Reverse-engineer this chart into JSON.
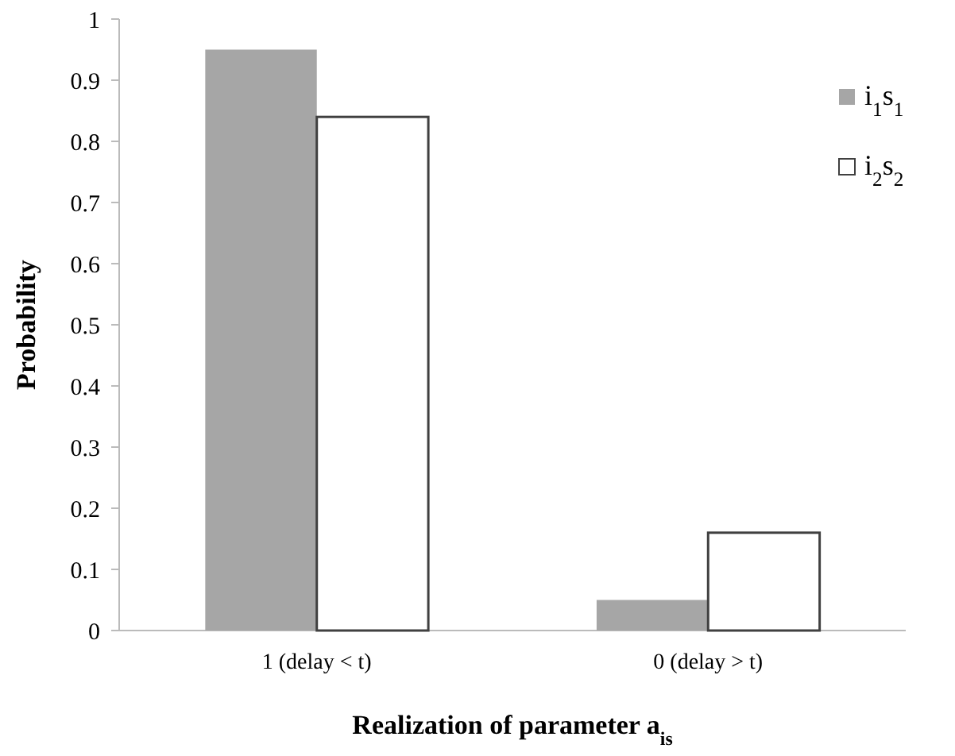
{
  "chart_data": {
    "type": "bar",
    "xlabel": "Realization of parameter a$_{is}$",
    "ylabel": "Probability",
    "categories": [
      "1 (delay < t)",
      "0 (delay > t)"
    ],
    "series": [
      {
        "name": "i$_{1}$s$_{1}$",
        "color": "#a6a6a6",
        "values": [
          0.95,
          0.05
        ]
      },
      {
        "name": "i$_{2}$s$_{2}$",
        "color": "#ffffff",
        "values": [
          0.84,
          0.16
        ]
      }
    ],
    "ylim": [
      0,
      1
    ],
    "yticks": [
      0,
      0.1,
      0.2,
      0.3,
      0.4,
      0.5,
      0.6,
      0.7,
      0.8,
      0.9,
      1
    ],
    "legend": "right"
  }
}
